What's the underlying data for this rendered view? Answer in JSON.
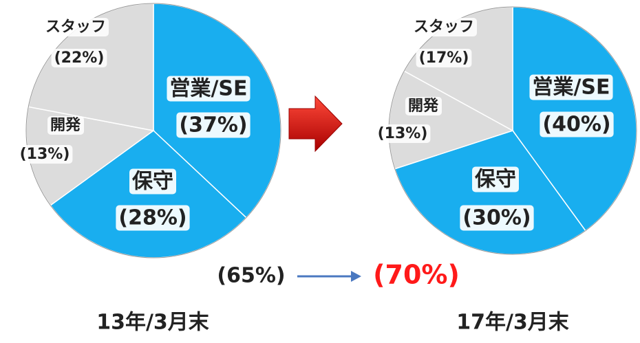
{
  "chart_data": [
    {
      "type": "pie",
      "title": "13年/3月末",
      "categories": [
        "営業/SE",
        "保守",
        "開発",
        "スタッフ"
      ],
      "values": [
        37,
        28,
        13,
        22
      ],
      "value_labels": [
        "(37%)",
        "(28%)",
        "(13%)",
        "(22%)"
      ],
      "colors": [
        "#19aeef",
        "#19aeef",
        "#dcdcdc",
        "#dcdcdc"
      ]
    },
    {
      "type": "pie",
      "title": "17年/3月末",
      "categories": [
        "営業/SE",
        "保守",
        "開発",
        "スタッフ"
      ],
      "values": [
        40,
        30,
        13,
        17
      ],
      "value_labels": [
        "(40%)",
        "(30%)",
        "(13%)",
        "(17%)"
      ],
      "colors": [
        "#19aeef",
        "#19aeef",
        "#dcdcdc",
        "#dcdcdc"
      ]
    }
  ],
  "annotations": [
    "(65%)",
    "(70%)"
  ]
}
